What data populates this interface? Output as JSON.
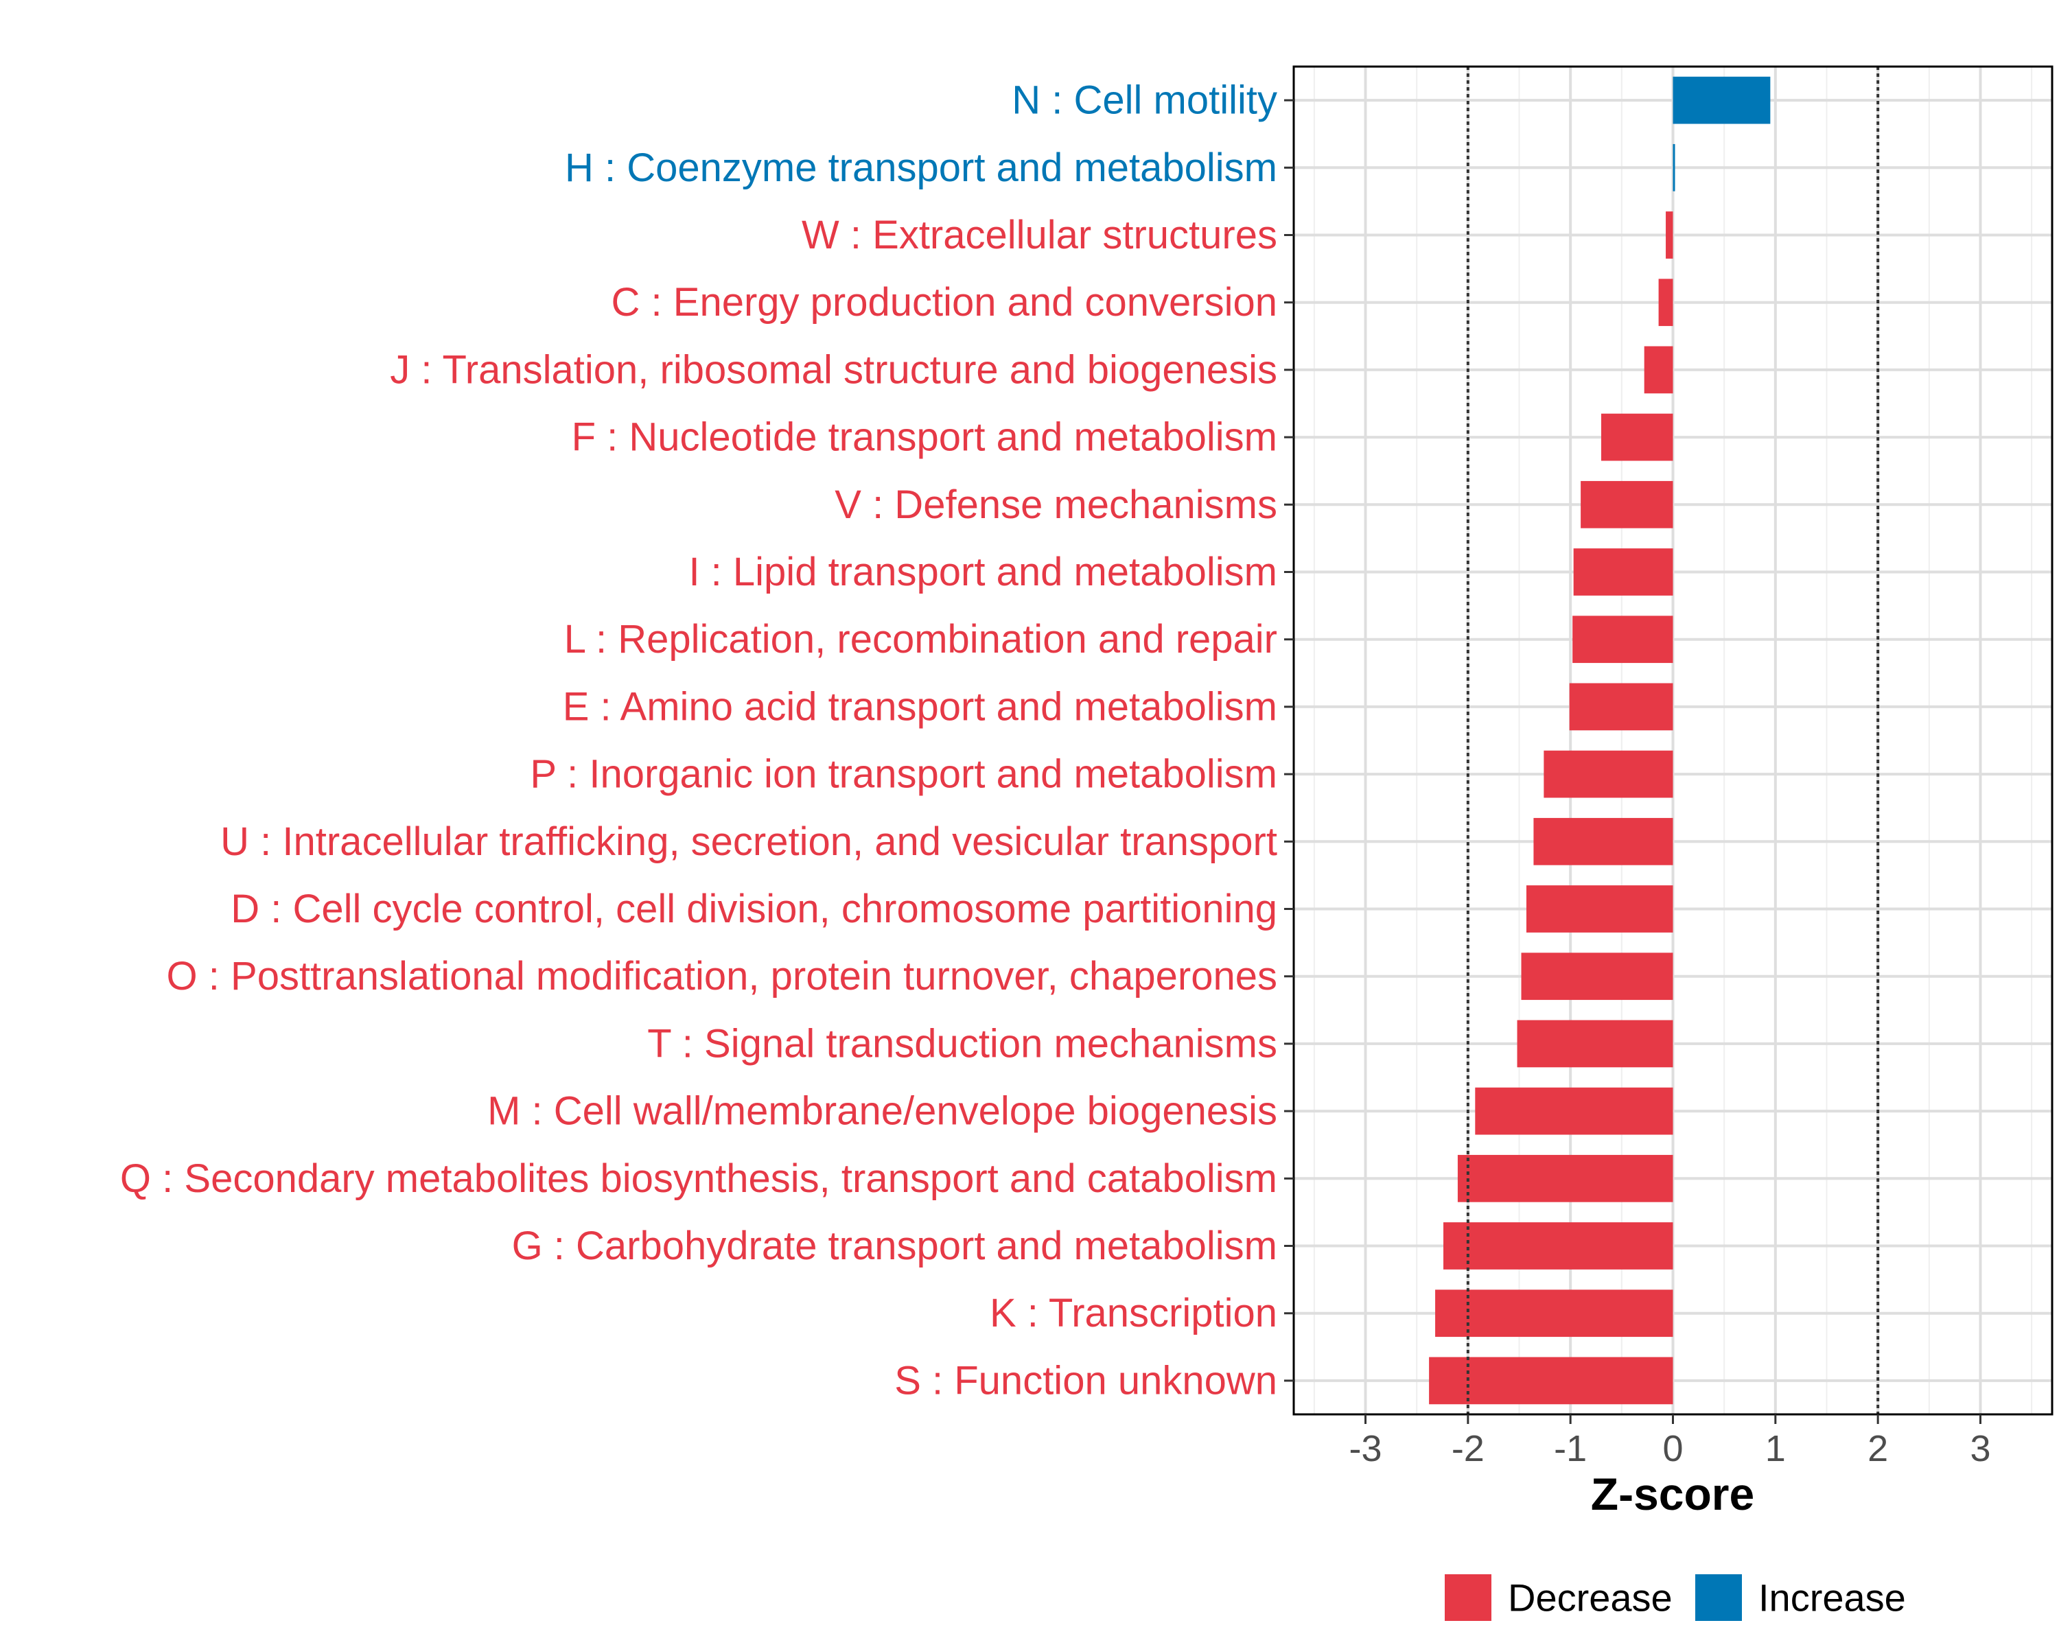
{
  "chart_data": {
    "type": "bar",
    "orientation": "horizontal",
    "title": "",
    "xlabel": "Z-score",
    "ylabel": "",
    "xlim": [
      -3.7,
      3.7
    ],
    "x_ticks": [
      -3,
      -2,
      -1,
      0,
      1,
      2,
      3
    ],
    "reference_lines": [
      -2,
      2
    ],
    "grid": true,
    "legend_position": "bottom",
    "colors": {
      "Decrease": "#e63946",
      "Increase": "#0077b6"
    },
    "legend": [
      {
        "label": "Decrease",
        "color": "#e63946"
      },
      {
        "label": "Increase",
        "color": "#0077b6"
      }
    ],
    "categories": [
      {
        "label": "N : Cell motility",
        "value": 0.95,
        "direction": "Increase"
      },
      {
        "label": "H : Coenzyme transport and metabolism",
        "value": 0.02,
        "direction": "Increase"
      },
      {
        "label": "W : Extracellular structures",
        "value": -0.07,
        "direction": "Decrease"
      },
      {
        "label": "C : Energy production and conversion",
        "value": -0.14,
        "direction": "Decrease"
      },
      {
        "label": "J : Translation, ribosomal structure and biogenesis",
        "value": -0.28,
        "direction": "Decrease"
      },
      {
        "label": "F : Nucleotide transport and metabolism",
        "value": -0.7,
        "direction": "Decrease"
      },
      {
        "label": "V : Defense mechanisms",
        "value": -0.9,
        "direction": "Decrease"
      },
      {
        "label": "I : Lipid transport and metabolism",
        "value": -0.97,
        "direction": "Decrease"
      },
      {
        "label": "L : Replication, recombination and repair",
        "value": -0.98,
        "direction": "Decrease"
      },
      {
        "label": "E : Amino acid transport and metabolism",
        "value": -1.01,
        "direction": "Decrease"
      },
      {
        "label": "P : Inorganic ion transport and metabolism",
        "value": -1.26,
        "direction": "Decrease"
      },
      {
        "label": "U : Intracellular trafficking, secretion, and vesicular transport",
        "value": -1.36,
        "direction": "Decrease"
      },
      {
        "label": "D : Cell cycle control, cell division, chromosome partitioning",
        "value": -1.43,
        "direction": "Decrease"
      },
      {
        "label": "O : Posttranslational modification, protein turnover, chaperones",
        "value": -1.48,
        "direction": "Decrease"
      },
      {
        "label": "T : Signal transduction mechanisms",
        "value": -1.52,
        "direction": "Decrease"
      },
      {
        "label": "M : Cell wall/membrane/envelope biogenesis",
        "value": -1.93,
        "direction": "Decrease"
      },
      {
        "label": "Q : Secondary metabolites biosynthesis, transport and catabolism",
        "value": -2.1,
        "direction": "Decrease"
      },
      {
        "label": "G : Carbohydrate transport and metabolism",
        "value": -2.24,
        "direction": "Decrease"
      },
      {
        "label": "K : Transcription",
        "value": -2.32,
        "direction": "Decrease"
      },
      {
        "label": "S : Function unknown",
        "value": -2.38,
        "direction": "Decrease"
      }
    ]
  }
}
